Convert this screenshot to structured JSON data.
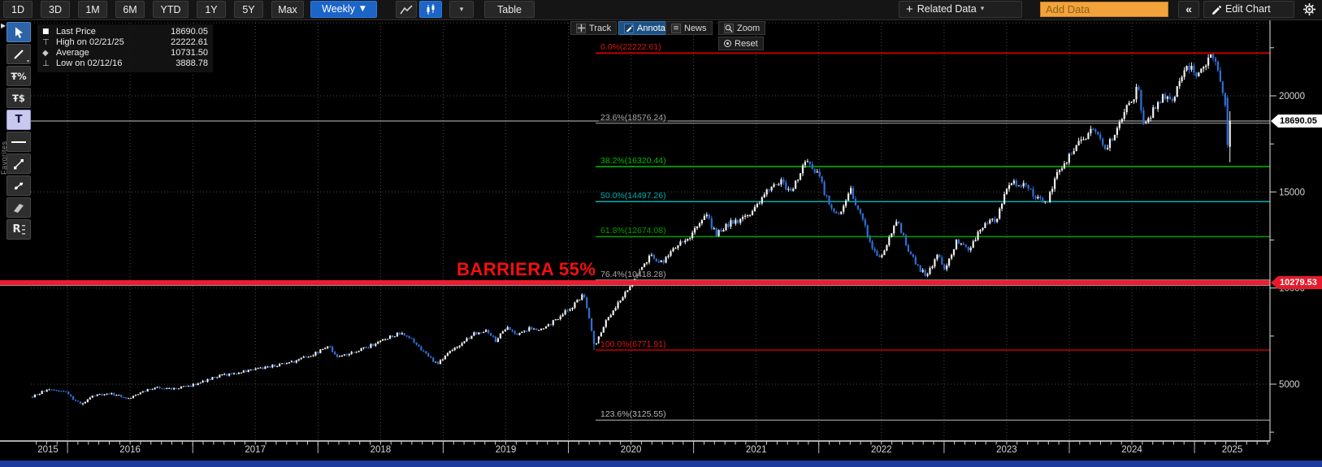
{
  "toolbar": {
    "periods": [
      "1D",
      "3D",
      "1M",
      "6M",
      "YTD",
      "1Y",
      "5Y",
      "Max"
    ],
    "interval_label": "Weekly",
    "interval_caret": "▼",
    "chart_type_caret": "▾",
    "table_label": "Table",
    "related_plus": "+",
    "related_data_label": "Related Data",
    "related_caret": "▾",
    "add_data_placeholder": "Add Data",
    "collapse_label": "«",
    "edit_chart_label": "Edit Chart"
  },
  "sidebar": {
    "favorites_label": "Favorites",
    "expander": "▶",
    "tools": {
      "retracement_percent_glyph": "Ŧ%",
      "retracement_dollar_glyph": "Ŧ$",
      "text_glyph": "T",
      "regression_glyph": "R"
    }
  },
  "legend": {
    "rows": [
      {
        "marker": "■",
        "label": "Last Price",
        "value": "18690.05"
      },
      {
        "marker": "⊤",
        "label": "High on 02/21/25",
        "value": "22222.61"
      },
      {
        "marker": "◆",
        "label": "Average",
        "value": "10731.50"
      },
      {
        "marker": "⊥",
        "label": "Low on 02/12/16",
        "value": "3888.78"
      }
    ]
  },
  "chart_toolbar": {
    "track": "Track",
    "annotate": "Annotate",
    "news": "News",
    "zoom": "Zoom",
    "reset": "Reset",
    "news_icon": "≡"
  },
  "annotation": {
    "text": "BARRIERA 55%",
    "level": 10279.53,
    "color": "#f50f0f"
  },
  "badges": {
    "last_price": "18690.05",
    "barrier": "10279.53"
  },
  "axes": {
    "y_ticks": [
      {
        "label": "20000",
        "value": 20000
      },
      {
        "label": "15000",
        "value": 15000
      },
      {
        "label": "10000",
        "value": 10000
      },
      {
        "label": "5000",
        "value": 5000
      }
    ],
    "x_years": [
      "2015",
      "2016",
      "2017",
      "2018",
      "2019",
      "2020",
      "2021",
      "2022",
      "2023",
      "2024",
      "2025"
    ]
  },
  "fibonacci": [
    {
      "label": "0.0%(22222.61)",
      "value": 22222.61,
      "color": "#c00000",
      "width": 2
    },
    {
      "label": "23.6%(18576.24)",
      "value": 18576.24,
      "color": "#a8a8a8",
      "width": 1
    },
    {
      "label": "38.2%(16320.44)",
      "value": 16320.44,
      "color": "#00bb00",
      "width": 1.5
    },
    {
      "label": "50.0%(14497.26)",
      "value": 14497.26,
      "color": "#00b0b0",
      "width": 1.5
    },
    {
      "label": "61.8%(12674.08)",
      "value": 12674.08,
      "color": "#00a000",
      "width": 1.5
    },
    {
      "label": "76.4%(10418.28)",
      "value": 10418.28,
      "color": "#a8a8a8",
      "width": 1
    },
    {
      "label": "100.0%(6771.91)",
      "value": 6771.91,
      "color": "#c00000",
      "width": 1.5
    },
    {
      "label": "123.6%(3125.55)",
      "value": 3125.55,
      "color": "#b8b8b8",
      "width": 1
    }
  ],
  "chart_data": {
    "type": "candlestick",
    "interval": "weekly",
    "x_domain": [
      2015.72,
      2025.29
    ],
    "y_axis_range": [
      2040,
      23930
    ],
    "grid": true,
    "legend_position": "top-left",
    "up_color": "#f2f2f2",
    "down_color": "#2f6fd6",
    "stats": {
      "last_price": 18690.05,
      "high": {
        "date": "02/21/25",
        "value": 22222.61
      },
      "average": 10731.5,
      "low": {
        "date": "02/12/16",
        "value": 3888.78
      }
    },
    "anchors": [
      [
        2015.72,
        4350
      ],
      [
        2015.8,
        4600
      ],
      [
        2015.88,
        4700
      ],
      [
        2015.95,
        4650
      ],
      [
        2016.0,
        4550
      ],
      [
        2016.05,
        4150
      ],
      [
        2016.12,
        3950
      ],
      [
        2016.2,
        4400
      ],
      [
        2016.35,
        4500
      ],
      [
        2016.5,
        4250
      ],
      [
        2016.55,
        4450
      ],
      [
        2016.7,
        4850
      ],
      [
        2016.85,
        4750
      ],
      [
        2017.0,
        4950
      ],
      [
        2017.2,
        5400
      ],
      [
        2017.4,
        5650
      ],
      [
        2017.6,
        5900
      ],
      [
        2017.8,
        6150
      ],
      [
        2018.0,
        6650
      ],
      [
        2018.08,
        7000
      ],
      [
        2018.15,
        6450
      ],
      [
        2018.3,
        6650
      ],
      [
        2018.45,
        7100
      ],
      [
        2018.65,
        7650
      ],
      [
        2018.75,
        7300
      ],
      [
        2018.85,
        6650
      ],
      [
        2018.95,
        6050
      ],
      [
        2019.05,
        6650
      ],
      [
        2019.25,
        7650
      ],
      [
        2019.35,
        7850
      ],
      [
        2019.42,
        7250
      ],
      [
        2019.5,
        7950
      ],
      [
        2019.6,
        7600
      ],
      [
        2019.7,
        7950
      ],
      [
        2019.8,
        7850
      ],
      [
        2019.95,
        8650
      ],
      [
        2020.05,
        9150
      ],
      [
        2020.12,
        9650
      ],
      [
        2020.16,
        8600
      ],
      [
        2020.21,
        7000
      ],
      [
        2020.3,
        8300
      ],
      [
        2020.42,
        9500
      ],
      [
        2020.5,
        10200
      ],
      [
        2020.6,
        11100
      ],
      [
        2020.66,
        11900
      ],
      [
        2020.72,
        11200
      ],
      [
        2020.8,
        11700
      ],
      [
        2020.88,
        12250
      ],
      [
        2021.0,
        12900
      ],
      [
        2021.1,
        13750
      ],
      [
        2021.18,
        12850
      ],
      [
        2021.3,
        13450
      ],
      [
        2021.45,
        13700
      ],
      [
        2021.55,
        14750
      ],
      [
        2021.65,
        15350
      ],
      [
        2021.7,
        15600
      ],
      [
        2021.78,
        14900
      ],
      [
        2021.88,
        16500
      ],
      [
        2021.95,
        16300
      ],
      [
        2022.0,
        15800
      ],
      [
        2022.08,
        14350
      ],
      [
        2022.18,
        13800
      ],
      [
        2022.25,
        15150
      ],
      [
        2022.35,
        13500
      ],
      [
        2022.42,
        12250
      ],
      [
        2022.48,
        11400
      ],
      [
        2022.58,
        12900
      ],
      [
        2022.62,
        13550
      ],
      [
        2022.72,
        11950
      ],
      [
        2022.8,
        11050
      ],
      [
        2022.85,
        10650
      ],
      [
        2022.95,
        11700
      ],
      [
        2023.0,
        10950
      ],
      [
        2023.1,
        12450
      ],
      [
        2023.2,
        12000
      ],
      [
        2023.3,
        13100
      ],
      [
        2023.42,
        13650
      ],
      [
        2023.5,
        15100
      ],
      [
        2023.55,
        15550
      ],
      [
        2023.65,
        15300
      ],
      [
        2023.72,
        14850
      ],
      [
        2023.82,
        14300
      ],
      [
        2023.9,
        15900
      ],
      [
        2024.0,
        16800
      ],
      [
        2024.1,
        17700
      ],
      [
        2024.2,
        18250
      ],
      [
        2024.3,
        17200
      ],
      [
        2024.4,
        18650
      ],
      [
        2024.5,
        19800
      ],
      [
        2024.55,
        20400
      ],
      [
        2024.6,
        18300
      ],
      [
        2024.63,
        18700
      ],
      [
        2024.7,
        19650
      ],
      [
        2024.78,
        20100
      ],
      [
        2024.83,
        19800
      ],
      [
        2024.92,
        21100
      ],
      [
        2024.97,
        21750
      ],
      [
        2025.02,
        21050
      ],
      [
        2025.07,
        21700
      ],
      [
        2025.12,
        21900
      ],
      [
        2025.15,
        22100
      ],
      [
        2025.2,
        20900
      ],
      [
        2025.24,
        19600
      ],
      [
        2025.28,
        18690.05
      ]
    ],
    "pins": [
      {
        "t": 2016.12,
        "low": 3888.78
      },
      {
        "t": 2020.21,
        "low": 6771.91
      },
      {
        "t": 2025.155,
        "high": 22222.61
      },
      {
        "t": 2025.266,
        "open": 19900,
        "high": 20050,
        "low": 17300,
        "close": 17450
      },
      {
        "t": 2025.285,
        "open": 17350,
        "high": 19200,
        "low": 16542,
        "close": 18690.05
      }
    ]
  }
}
